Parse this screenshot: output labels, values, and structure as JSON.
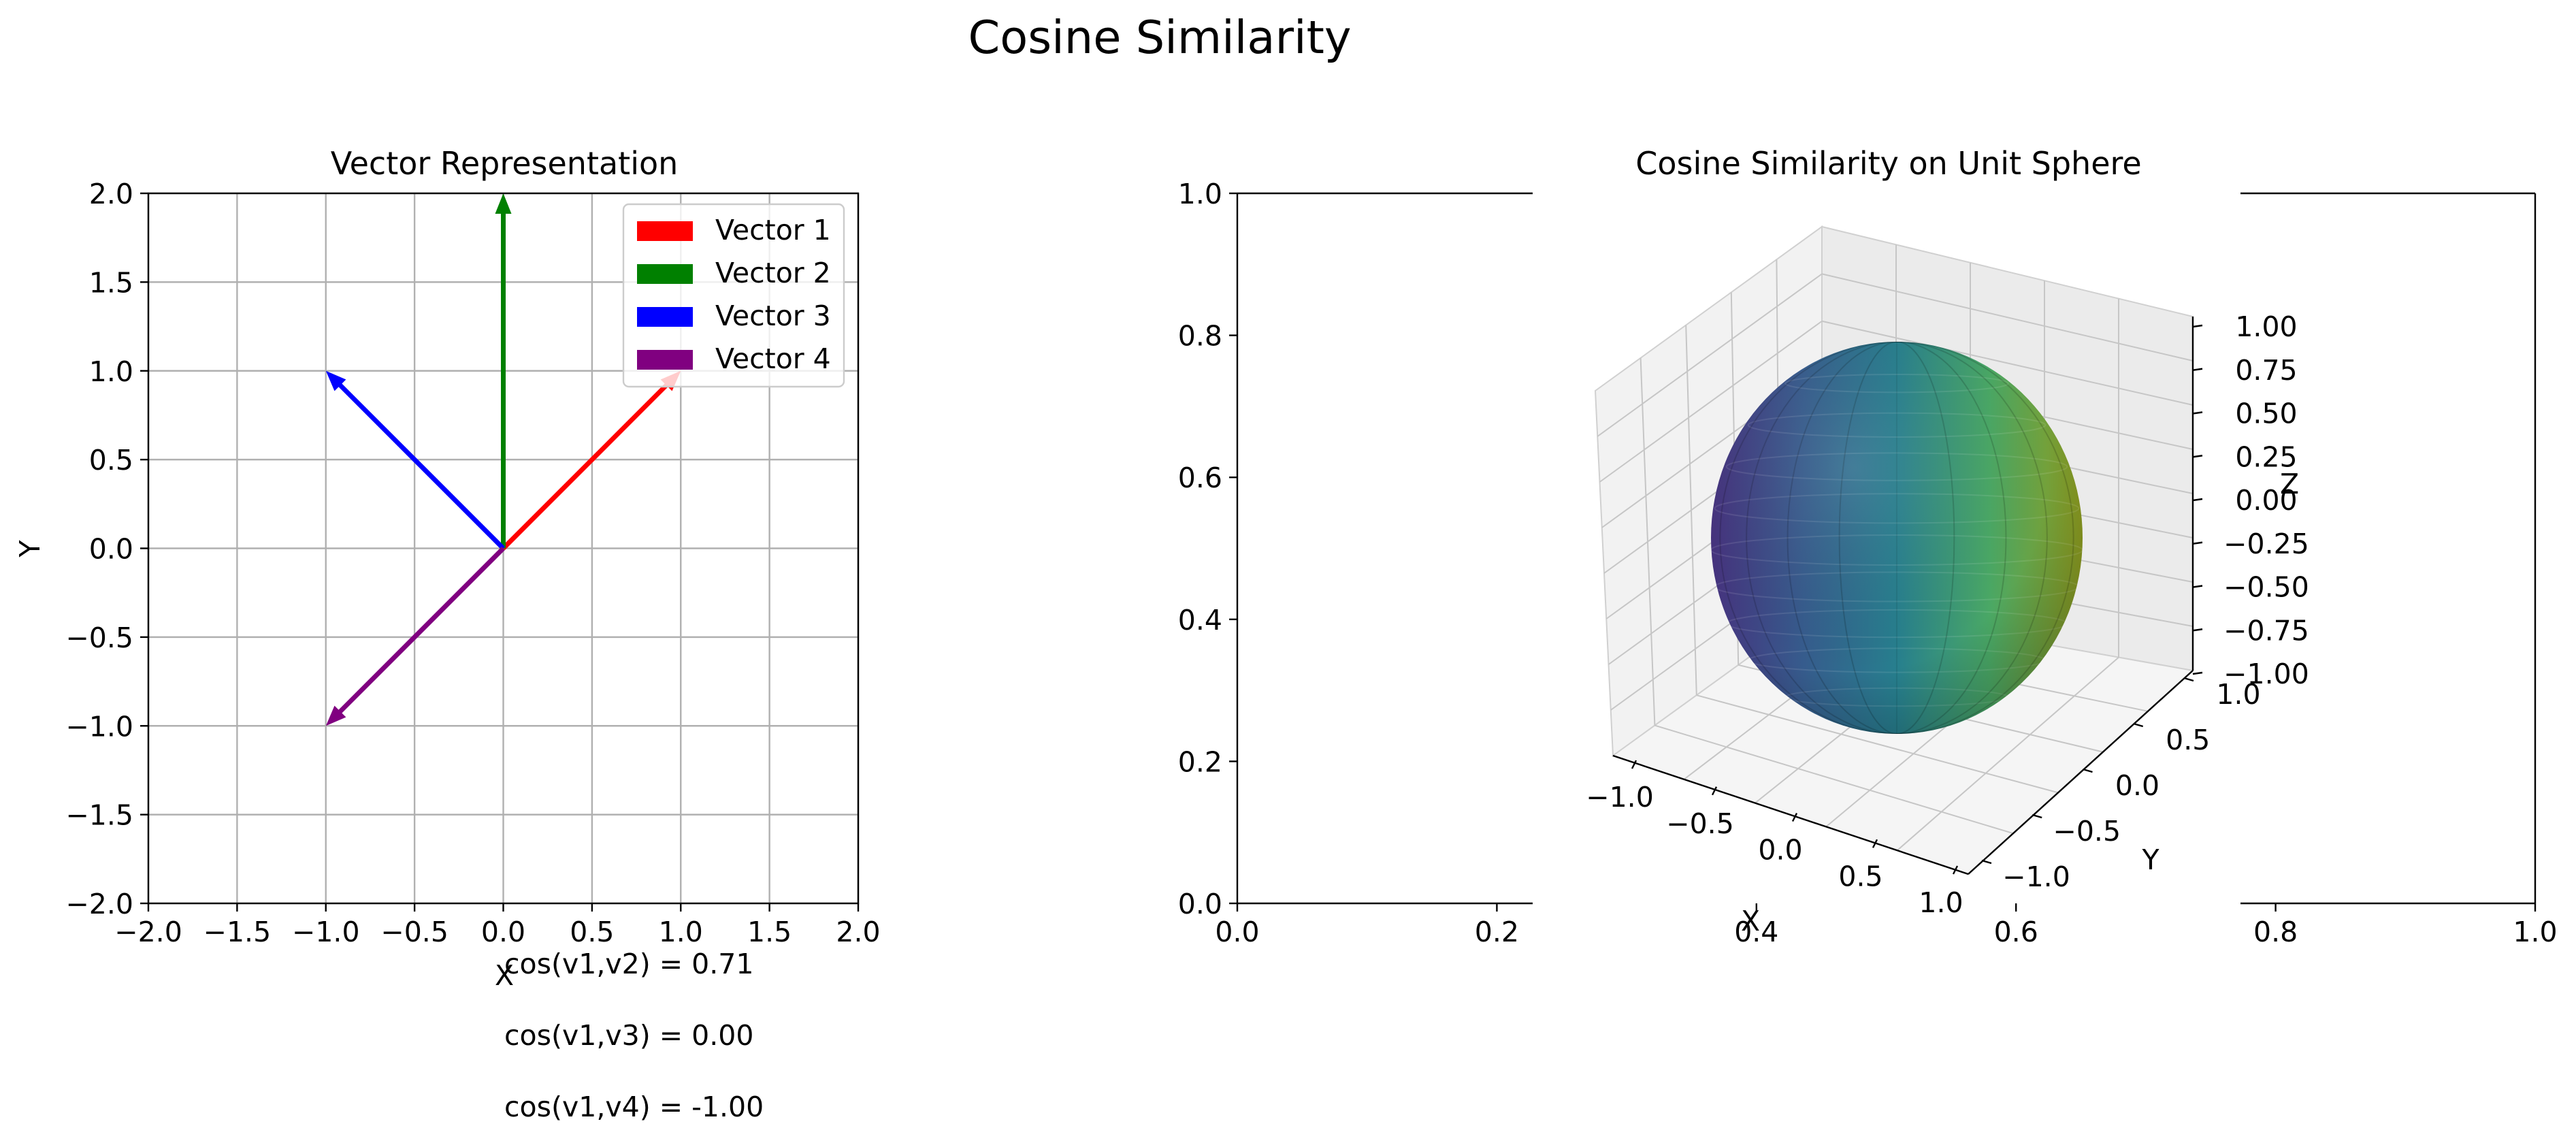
{
  "figure": {
    "suptitle": "Cosine Similarity"
  },
  "chart_data": [
    {
      "type": "quiver",
      "title": "Vector Representation",
      "xlabel": "X",
      "ylabel": "Y",
      "xlim": [
        -2,
        2
      ],
      "ylim": [
        -2,
        2
      ],
      "xticks": [
        "−2.0",
        "−1.5",
        "−1.0",
        "−0.5",
        "0.0",
        "0.5",
        "1.0",
        "1.5",
        "2.0"
      ],
      "yticks": [
        "−2.0",
        "−1.5",
        "−1.0",
        "−0.5",
        "0.0",
        "0.5",
        "1.0",
        "1.5",
        "2.0"
      ],
      "grid": true,
      "legend_position": "top-right",
      "series": [
        {
          "name": "Vector 1",
          "origin": [
            0,
            0
          ],
          "vector": [
            1,
            1
          ],
          "color": "#ff0000"
        },
        {
          "name": "Vector 2",
          "origin": [
            0,
            0
          ],
          "vector": [
            0,
            2
          ],
          "color": "#008000"
        },
        {
          "name": "Vector 3",
          "origin": [
            0,
            0
          ],
          "vector": [
            -1,
            1
          ],
          "color": "#0000ff"
        },
        {
          "name": "Vector 4",
          "origin": [
            0,
            0
          ],
          "vector": [
            -1,
            -1
          ],
          "color": "#800080"
        }
      ],
      "annotations": [
        "cos(v1,v2) = 0.71",
        "cos(v1,v3) = 0.00",
        "cos(v1,v4) = -1.00"
      ]
    },
    {
      "type": "surface3d",
      "title": "Cosine Similarity on Unit Sphere",
      "surface": "unit sphere",
      "colormap": "viridis",
      "background_axes": {
        "xlim": [
          0,
          1
        ],
        "ylim": [
          0,
          1
        ],
        "xticks": [
          "0.0",
          "0.2",
          "0.4",
          "0.6",
          "0.8",
          "1.0"
        ],
        "yticks": [
          "0.0",
          "0.2",
          "0.4",
          "0.6",
          "0.8",
          "1.0"
        ]
      },
      "xlabel": "X",
      "ylabel": "Y",
      "zlabel": "Z",
      "xlim": [
        -1,
        1
      ],
      "ylim": [
        -1,
        1
      ],
      "zlim": [
        -1,
        1
      ],
      "xticks": [
        "−1.0",
        "−0.5",
        "0.0",
        "0.5",
        "1.0"
      ],
      "yticks": [
        "−1.0",
        "−0.5",
        "0.0",
        "0.5",
        "1.0"
      ],
      "zticks": [
        "−1.00",
        "−0.75",
        "−0.50",
        "−0.25",
        "0.00",
        "0.25",
        "0.50",
        "0.75",
        "1.00"
      ]
    }
  ]
}
